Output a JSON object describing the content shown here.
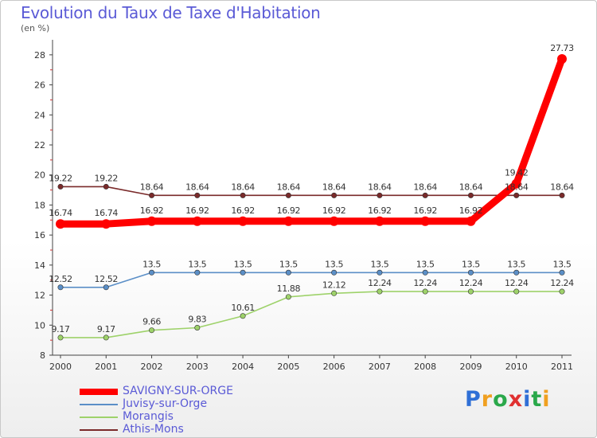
{
  "header": {
    "title": "Evolution du Taux de Taxe d'Habitation",
    "subtitle": "(en %)"
  },
  "logo": {
    "letters": [
      "P",
      "r",
      "o",
      "x",
      "i",
      "t",
      "i"
    ],
    "colors": [
      "#2f6fd6",
      "#f0a020",
      "#2aa84a",
      "#e03030",
      "#2f6fd6",
      "#2aa84a",
      "#f0a020"
    ]
  },
  "chart_data": {
    "type": "line",
    "title": "Evolution du Taux de Taxe d'Habitation",
    "ylabel": "(en %)",
    "xlabel": "",
    "x": [
      "2000",
      "2001",
      "2002",
      "2003",
      "2004",
      "2005",
      "2006",
      "2007",
      "2008",
      "2009",
      "2010",
      "2011"
    ],
    "ylim": [
      8,
      29
    ],
    "yticks": [
      8,
      10,
      12,
      14,
      16,
      18,
      20,
      22,
      24,
      26,
      28
    ],
    "grid": false,
    "legend": "bottom",
    "series": [
      {
        "name": "SAVIGNY-SUR-ORGE",
        "color": "#ff0000",
        "values": [
          16.74,
          16.74,
          16.92,
          16.92,
          16.92,
          16.92,
          16.92,
          16.92,
          16.92,
          16.92,
          19.42,
          27.73
        ],
        "labels": [
          "16.74",
          "16.74",
          "16.92",
          "16.92",
          "16.92",
          "16.92",
          "16.92",
          "16.92",
          "16.92",
          "16.92",
          "19.42",
          "27.73"
        ]
      },
      {
        "name": "Juvisy-sur-Orge",
        "color": "#5b8fc7",
        "values": [
          12.52,
          12.52,
          13.5,
          13.5,
          13.5,
          13.5,
          13.5,
          13.5,
          13.5,
          13.5,
          13.5,
          13.5
        ],
        "labels": [
          "12.52",
          "12.52",
          "13.5",
          "13.5",
          "13.5",
          "13.5",
          "13.5",
          "13.5",
          "13.5",
          "13.5",
          "13.5",
          "13.5"
        ]
      },
      {
        "name": "Morangis",
        "color": "#9ed26a",
        "values": [
          9.17,
          9.17,
          9.66,
          9.83,
          10.61,
          11.88,
          12.12,
          12.24,
          12.24,
          12.24,
          12.24,
          12.24
        ],
        "labels": [
          "9.17",
          "9.17",
          "9.66",
          "9.83",
          "10.61",
          "11.88",
          "12.12",
          "12.24",
          "12.24",
          "12.24",
          "12.24",
          "12.24"
        ]
      },
      {
        "name": "Athis-Mons",
        "color": "#7a2a2a",
        "values": [
          19.22,
          19.22,
          18.64,
          18.64,
          18.64,
          18.64,
          18.64,
          18.64,
          18.64,
          18.64,
          18.64,
          18.64
        ],
        "labels": [
          "19.22",
          "19.22",
          "18.64",
          "18.64",
          "18.64",
          "18.64",
          "18.64",
          "18.64",
          "18.64",
          "18.64",
          "18.64",
          "18.64"
        ]
      }
    ]
  }
}
